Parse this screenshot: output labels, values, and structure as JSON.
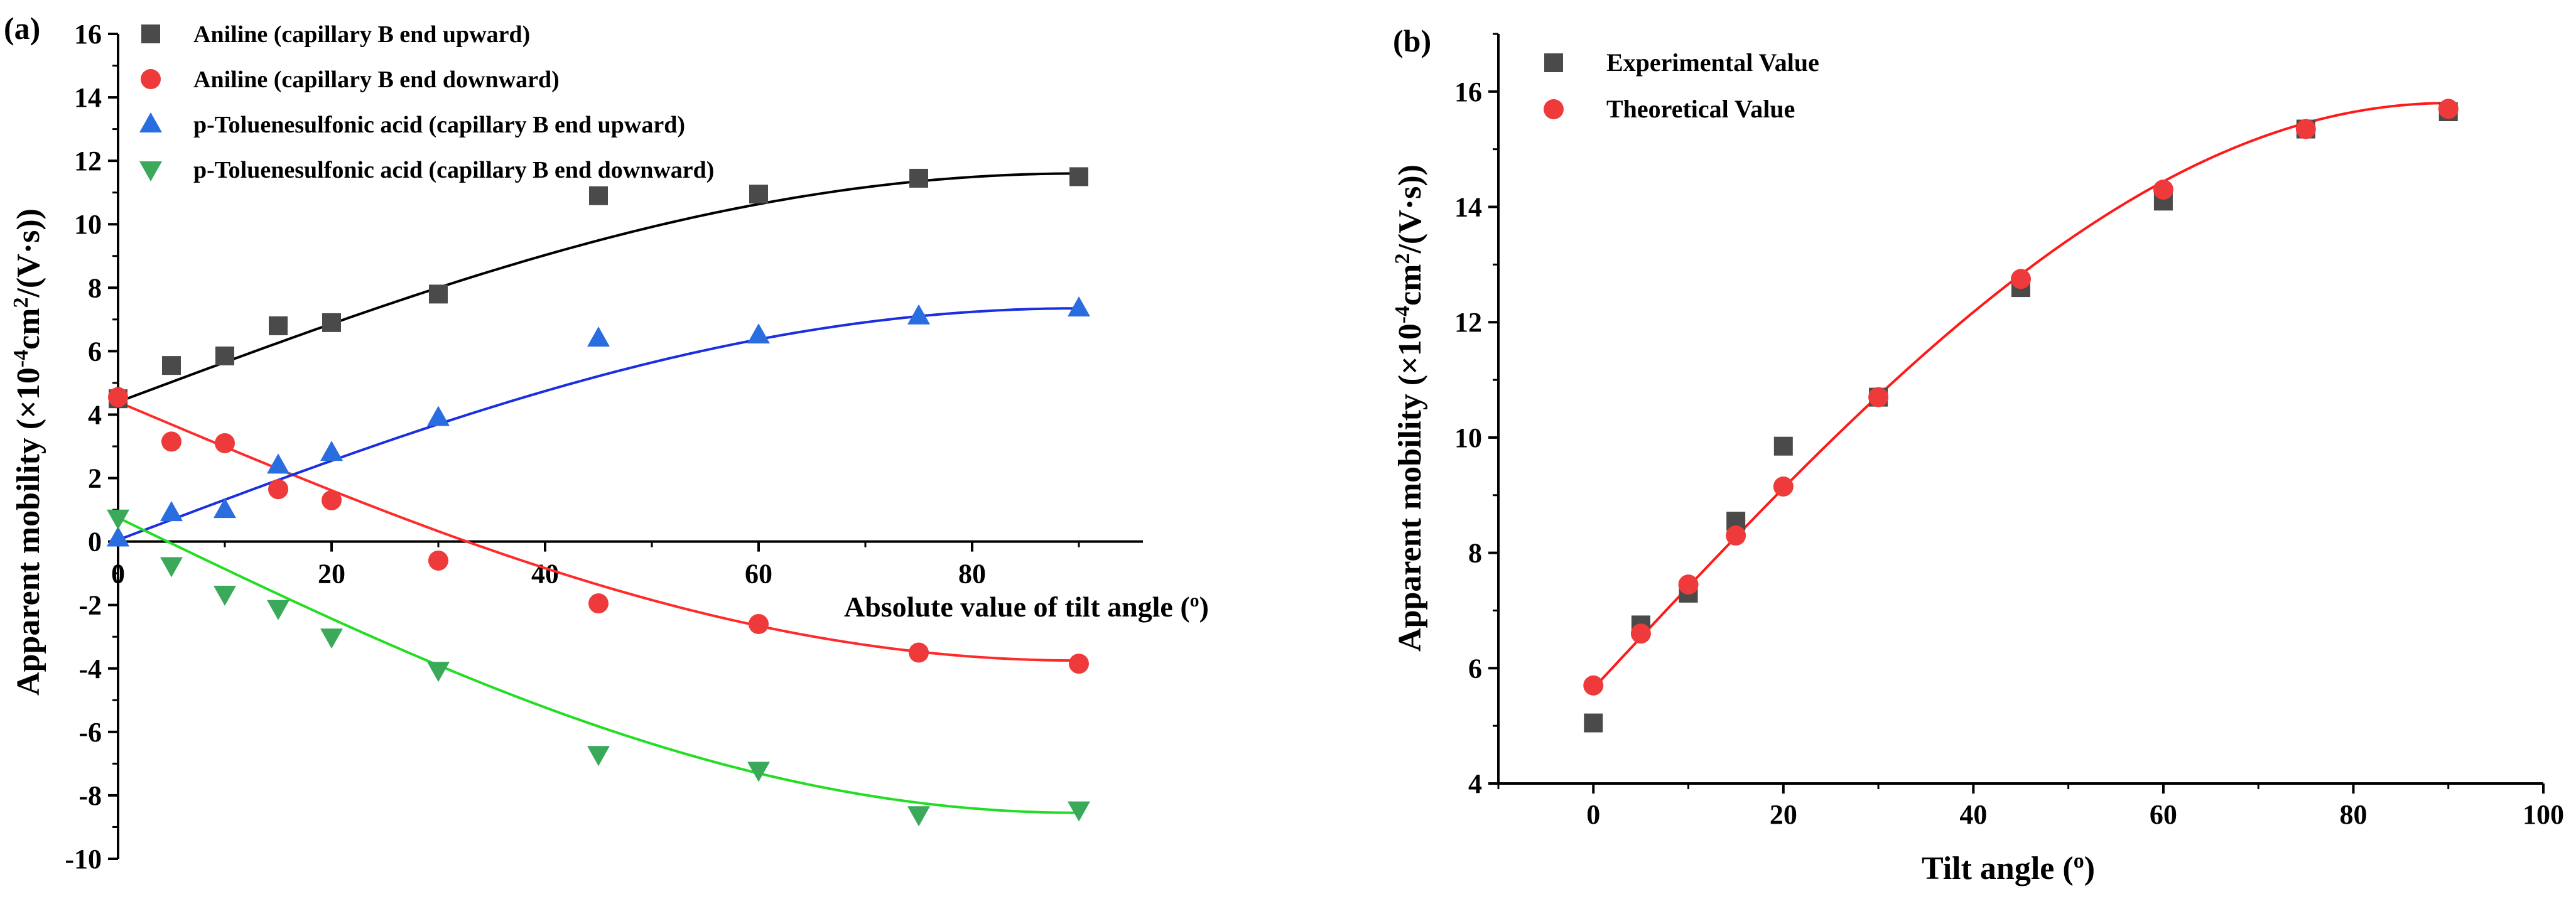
{
  "chart_data": [
    {
      "panel": "(a)",
      "type": "scatter",
      "xlabel": "Absolute value of tilt angle (o)",
      "xlabel_main": "Absolute value of tilt angle (",
      "xlabel_sup": "o",
      "xlabel_close": ")",
      "ylabel_main": "Apparent mobility (×10",
      "ylabel_sup1": "-4",
      "ylabel_mid": "cm",
      "ylabel_sup2": "2",
      "ylabel_end": "/(V·s))",
      "xlim": [
        0,
        96
      ],
      "ylim": [
        -10,
        16
      ],
      "xticks": [
        "0",
        "20",
        "40",
        "60",
        "80"
      ],
      "yticks": [
        "-10",
        "-8",
        "-6",
        "-4",
        "-2",
        "0",
        "2",
        "4",
        "6",
        "8",
        "10",
        "12",
        "14",
        "16"
      ],
      "legend_position": "top-left",
      "series": [
        {
          "name": "Aniline (capillary B end upward)",
          "marker": "square",
          "color": "#4a4a4a",
          "line_color": "#000000",
          "x": [
            0,
            5,
            10,
            15,
            20,
            30,
            45,
            60,
            75,
            90
          ],
          "y": [
            4.5,
            5.55,
            5.85,
            6.8,
            6.9,
            7.8,
            10.9,
            10.95,
            11.45,
            11.5
          ],
          "fit": {
            "a": 4.4,
            "b": 7.2
          }
        },
        {
          "name": "Aniline (capillary B end downward)",
          "marker": "circle",
          "color": "#ee3a3a",
          "line_color": "#ff2a2a",
          "x": [
            0,
            5,
            10,
            15,
            20,
            30,
            45,
            60,
            75,
            90
          ],
          "y": [
            4.55,
            3.15,
            3.1,
            1.65,
            1.3,
            -0.6,
            -1.95,
            -2.6,
            -3.5,
            -3.85
          ],
          "fit": {
            "a": 4.4,
            "b": -8.15
          }
        },
        {
          "name": "p-Toluenesulfonic acid (capillary B end upward)",
          "marker": "triangle-up",
          "color": "#2a6de0",
          "line_color": "#1a2fe0",
          "x": [
            0,
            5,
            10,
            15,
            20,
            30,
            45,
            60,
            75,
            90
          ],
          "y": [
            0.1,
            0.9,
            1.0,
            2.4,
            2.8,
            3.9,
            6.4,
            6.5,
            7.1,
            7.35
          ],
          "fit": {
            "a": 0.05,
            "b": 7.3
          }
        },
        {
          "name": "p-Toluenesulfonic acid (capillary B end downward)",
          "marker": "triangle-down",
          "color": "#3aaa5a",
          "line_color": "#22dd22",
          "x": [
            0,
            5,
            10,
            15,
            20,
            30,
            45,
            60,
            75,
            90
          ],
          "y": [
            0.75,
            -0.75,
            -1.65,
            -2.1,
            -3.0,
            -4.05,
            -6.7,
            -7.2,
            -8.6,
            -8.45
          ],
          "fit": {
            "a": 0.75,
            "b": -9.3
          }
        }
      ]
    },
    {
      "panel": "(b)",
      "type": "scatter",
      "xlabel_main": "Tilt angle (",
      "xlabel_sup": "o",
      "xlabel_close": ")",
      "ylabel_main": "Apparent mobility (×10",
      "ylabel_sup1": "-4",
      "ylabel_mid": "cm",
      "ylabel_sup2": "2",
      "ylabel_end": "/(V·s))",
      "xlim": [
        -10,
        100
      ],
      "ylim": [
        4,
        17
      ],
      "xticks": [
        "0",
        "20",
        "40",
        "60",
        "80",
        "100"
      ],
      "yticks": [
        "4",
        "6",
        "8",
        "10",
        "12",
        "14",
        "16"
      ],
      "legend_position": "top-left",
      "series": [
        {
          "name": "Experimental Value",
          "marker": "square",
          "color": "#4a4a4a",
          "x": [
            0,
            5,
            10,
            15,
            20,
            30,
            45,
            60,
            75,
            90
          ],
          "y": [
            5.05,
            6.75,
            7.3,
            8.55,
            9.85,
            10.7,
            12.6,
            14.1,
            15.35,
            15.65
          ]
        },
        {
          "name": "Theoretical Value",
          "marker": "circle",
          "color": "#ee3a3a",
          "line_color": "#ff1a1a",
          "x": [
            0,
            5,
            10,
            15,
            20,
            30,
            45,
            60,
            75,
            90
          ],
          "y": [
            5.7,
            6.6,
            7.45,
            8.3,
            9.15,
            10.7,
            12.75,
            14.3,
            15.35,
            15.7
          ],
          "fit": {
            "a": 5.65,
            "b": 10.15
          }
        }
      ]
    }
  ]
}
